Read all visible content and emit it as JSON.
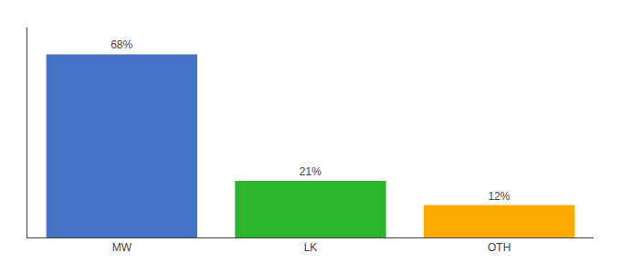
{
  "chart_data": {
    "type": "bar",
    "categories": [
      "MW",
      "LK",
      "OTH"
    ],
    "values": [
      68,
      21,
      12
    ],
    "value_labels": [
      "68%",
      "21%",
      "12%"
    ],
    "data_labels": true,
    "colors": [
      "#4472c4",
      "#2db52d",
      "#ffaa00"
    ],
    "ylim": [
      0,
      78
    ],
    "yticks": [],
    "tick_labels": "x",
    "grid": false
  }
}
